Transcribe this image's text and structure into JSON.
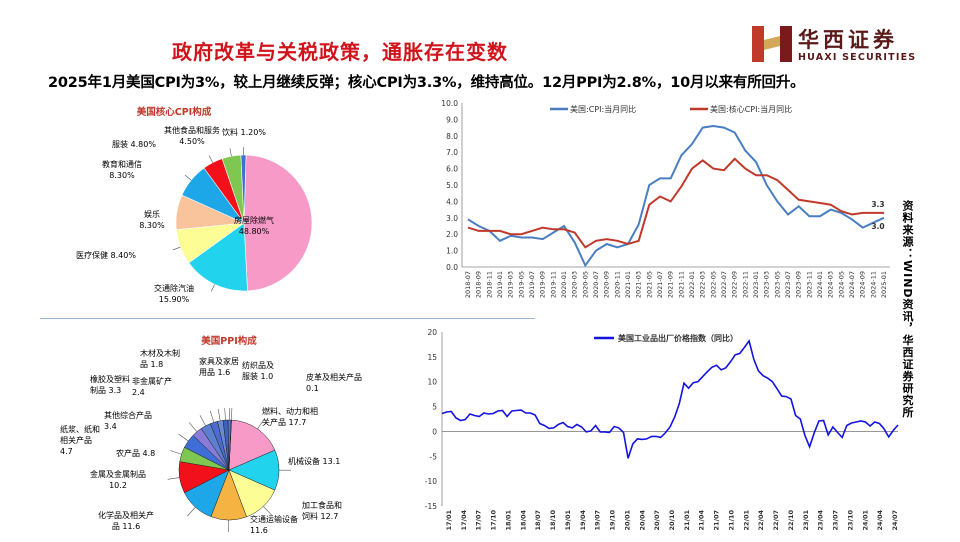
{
  "header": {
    "title": "政府改革与关税政策，通胀存在变数",
    "subtitle": "2025年1月美国CPI为3%，较上月继续反弹；核心CPI为3.3%，维持高位。12月PPI为2.8%，10月以来有所回升。",
    "logo_cn": "华西证券",
    "logo_en": "HUAXI SECURITIES",
    "source": "资料来源：WIND资讯，华西证券研究所"
  },
  "chart_data": [
    {
      "type": "pie",
      "title": "美国核心CPI构成",
      "slices": [
        {
          "label": "房屋除燃气",
          "value": 48.8,
          "value_text": "48.80%",
          "color": "#f79ac8"
        },
        {
          "label": "交通除汽油",
          "value": 15.9,
          "value_text": "15.90%",
          "color": "#22d3ee"
        },
        {
          "label": "医疗保健",
          "value": 8.4,
          "value_text": "8.40%",
          "color": "#fdfd96"
        },
        {
          "label": "娱乐",
          "value": 8.3,
          "value_text": "8.30%",
          "color": "#f9c49c"
        },
        {
          "label": "教育和通信",
          "value": 8.3,
          "value_text": "8.30%",
          "color": "#1ea7e8"
        },
        {
          "label": "服装",
          "value": 4.8,
          "value_text": "4.80%",
          "color": "#f2111a"
        },
        {
          "label": "其他食品和服务",
          "value": 4.5,
          "value_text": "4.50%",
          "color": "#7ec852"
        },
        {
          "label": "饮料",
          "value": 1.2,
          "value_text": "1.20%",
          "color": "#3f6fd6"
        }
      ]
    },
    {
      "type": "line",
      "title": "",
      "legend": "top",
      "ylim": [
        0,
        10
      ],
      "yticks": [
        "0.0",
        "1.0",
        "2.0",
        "3.0",
        "4.0",
        "5.0",
        "6.0",
        "7.0",
        "8.0",
        "9.0",
        "10.0"
      ],
      "categories": [
        "2018-07",
        "2018-09",
        "2018-11",
        "2019-01",
        "2019-03",
        "2019-05",
        "2019-07",
        "2019-09",
        "2019-11",
        "2020-01",
        "2020-03",
        "2020-05",
        "2020-07",
        "2020-09",
        "2020-11",
        "2021-01",
        "2021-03",
        "2021-05",
        "2021-07",
        "2021-09",
        "2021-11",
        "2022-01",
        "2022-03",
        "2022-05",
        "2022-07",
        "2022-09",
        "2022-11",
        "2023-01",
        "2023-03",
        "2023-05",
        "2023-07",
        "2023-09",
        "2023-11",
        "2024-01",
        "2024-03",
        "2024-05",
        "2024-07",
        "2024-09",
        "2024-11",
        "2025-01"
      ],
      "tick_labels": [
        "2018-07",
        "2018-09",
        "2018-11",
        "2019-01",
        "2019-03",
        "2019-05",
        "2019-07",
        "2019-09",
        "2019-11",
        "2020-01",
        "2020-03",
        "2020-05",
        "2020-07",
        "2020-09",
        "2020-11",
        "2021-01",
        "2021-03",
        "2021-05",
        "2021-07",
        "2021-09",
        "2021-11",
        "2022-01",
        "2022-03",
        "2022-05",
        "2022-07",
        "2022-09",
        "2022-11",
        "2023-01",
        "2023-03",
        "2023-05",
        "2023-07",
        "2023-09",
        "2023-11",
        "2024-01",
        "2024-03",
        "2024-05",
        "2024-07",
        "2024-09",
        "2024-11",
        "2025-01"
      ],
      "series": [
        {
          "name": "美国:CPI:当月同比",
          "color": "#4a7ec2",
          "end_label": "3.0",
          "values": [
            2.9,
            2.5,
            2.2,
            1.6,
            1.9,
            1.8,
            1.8,
            1.7,
            2.1,
            2.5,
            1.5,
            0.1,
            1.0,
            1.4,
            1.2,
            1.4,
            2.6,
            5.0,
            5.4,
            5.4,
            6.8,
            7.5,
            8.5,
            8.6,
            8.5,
            8.2,
            7.1,
            6.4,
            5.0,
            4.0,
            3.2,
            3.7,
            3.1,
            3.1,
            3.5,
            3.3,
            2.9,
            2.4,
            2.7,
            3.0
          ]
        },
        {
          "name": "美国:核心CPI:当月同比",
          "color": "#c0392b",
          "end_label": "3.3",
          "values": [
            2.4,
            2.2,
            2.2,
            2.2,
            2.0,
            2.0,
            2.2,
            2.4,
            2.3,
            2.3,
            2.1,
            1.2,
            1.6,
            1.7,
            1.6,
            1.4,
            1.6,
            3.8,
            4.3,
            4.0,
            4.9,
            6.0,
            6.5,
            6.0,
            5.9,
            6.6,
            6.0,
            5.6,
            5.6,
            5.3,
            4.7,
            4.1,
            4.0,
            3.9,
            3.8,
            3.4,
            3.2,
            3.3,
            3.3,
            3.3
          ]
        }
      ]
    },
    {
      "type": "pie",
      "title": "美国PPI构成",
      "slices": [
        {
          "label": "燃料、动力和相关产品",
          "value": 17.7,
          "value_text": "17.7",
          "color": "#f79ac8"
        },
        {
          "label": "机械设备",
          "value": 13.1,
          "value_text": "13.1",
          "color": "#22d3ee"
        },
        {
          "label": "加工食品和饲料",
          "value": 12.7,
          "value_text": "12.7",
          "color": "#fdfd96"
        },
        {
          "label": "交通运输设备",
          "value": 11.6,
          "value_text": "11.6",
          "color": "#f5b342"
        },
        {
          "label": "化学品及相关产品",
          "value": 11.6,
          "value_text": "11.6",
          "color": "#1ea7e8"
        },
        {
          "label": "金属及金属制品",
          "value": 10.2,
          "value_text": "10.2",
          "color": "#f2111a"
        },
        {
          "label": "农产品",
          "value": 4.8,
          "value_text": "4.8",
          "color": "#7ec852"
        },
        {
          "label": "纸浆、纸和相关产品",
          "value": 4.7,
          "value_text": "4.7",
          "color": "#3f6fd6"
        },
        {
          "label": "其他综合产品",
          "value": 3.4,
          "value_text": "3.4",
          "color": "#8a7bd8"
        },
        {
          "label": "橡胶及塑料制品",
          "value": 3.3,
          "value_text": "3.3",
          "color": "#5c7fd0"
        },
        {
          "label": "非金属矿产品",
          "value": 2.4,
          "value_text": "2.4",
          "color": "#4b6ccc"
        },
        {
          "label": "木材及木制品",
          "value": 1.8,
          "value_text": "1.8",
          "color": "#6a8ad8"
        },
        {
          "label": "家具及家居用品",
          "value": 1.6,
          "value_text": "1.6",
          "color": "#3e5fc4"
        },
        {
          "label": "纺织品及服装",
          "value": 1.0,
          "value_text": "1.0",
          "color": "#5676d2"
        },
        {
          "label": "皮革及相关产品",
          "value": 0.1,
          "value_text": "0.1",
          "color": "#2f4fb0"
        }
      ]
    },
    {
      "type": "line",
      "title": "",
      "legend": "top-left",
      "ylim": [
        -15,
        20
      ],
      "yticks": [
        "-15",
        "-10",
        "-5",
        "0",
        "5",
        "10",
        "15",
        "20"
      ],
      "tick_labels": [
        "17/01",
        "17/04",
        "17/07",
        "17/10",
        "18/01",
        "18/04",
        "18/07",
        "18/10",
        "19/01",
        "19/04",
        "19/07",
        "19/10",
        "20/01",
        "20/04",
        "20/07",
        "20/10",
        "21/01",
        "21/04",
        "21/07",
        "21/10",
        "22/01",
        "22/04",
        "22/07",
        "22/10",
        "23/01",
        "23/04",
        "23/07",
        "23/10",
        "24/01",
        "24/04",
        "24/07"
      ],
      "series": [
        {
          "name": "美国工业品出厂价格指数（同比）",
          "color": "#1414e0",
          "values": [
            3.6,
            3.9,
            4.0,
            2.7,
            2.2,
            2.4,
            3.5,
            3.2,
            3.0,
            3.7,
            3.5,
            3.6,
            4.1,
            4.2,
            3.0,
            4.1,
            4.2,
            4.3,
            3.7,
            3.7,
            3.3,
            1.6,
            1.2,
            0.6,
            0.7,
            1.4,
            1.8,
            1.0,
            0.7,
            1.4,
            0.9,
            -0.1,
            0.1,
            1.2,
            -0.1,
            -0.1,
            -0.2,
            1.0,
            0.7,
            -0.2,
            -5.4,
            -2.5,
            -1.5,
            -1.6,
            -1.5,
            -1.0,
            -1.0,
            -1.2,
            -0.3,
            0.9,
            2.9,
            5.6,
            9.7,
            8.7,
            9.8,
            10.0,
            11.0,
            12.0,
            12.9,
            13.3,
            12.4,
            12.8,
            14.0,
            15.4,
            15.7,
            16.9,
            18.2,
            14.5,
            12.2,
            11.2,
            10.7,
            10.0,
            8.6,
            7.1,
            7.0,
            6.5,
            3.2,
            2.5,
            -0.8,
            -3.1,
            -0.3,
            2.1,
            2.2,
            -0.7,
            0.9,
            -0.2,
            -1.2,
            1.2,
            1.7,
            1.9,
            2.1,
            1.9,
            1.1,
            1.9,
            1.6,
            0.5,
            -1.1,
            0.2,
            1.3
          ]
        }
      ]
    }
  ]
}
